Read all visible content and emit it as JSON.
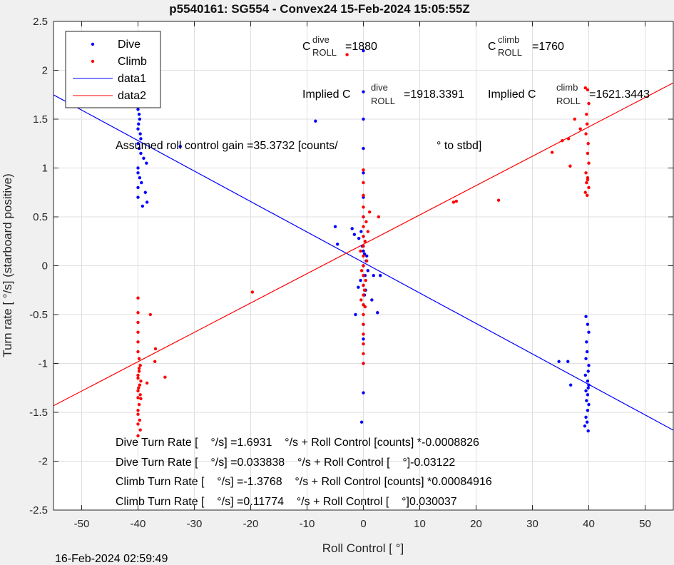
{
  "chart_data": {
    "type": "scatter",
    "title": "p5540161: SG554 - Convex24 15-Feb-2024 15:05:55Z",
    "xlabel": "Roll Control [ °]",
    "ylabel": "Turn rate [ °/s] (starboard positive)",
    "xlim": [
      -55,
      55
    ],
    "ylim": [
      -2.5,
      2.5
    ],
    "xticks": [
      "-50",
      "-40",
      "-30",
      "-20",
      "-10",
      "0",
      "10",
      "20",
      "30",
      "40",
      "50"
    ],
    "yticks": [
      "-2.5",
      "-2",
      "-1.5",
      "-1",
      "-0.5",
      "0",
      "0.5",
      "1",
      "1.5",
      "2",
      "2.5"
    ],
    "grid": true,
    "legend": {
      "location": "top-left",
      "entries": [
        "Dive",
        "Climb",
        "data1",
        "data2"
      ]
    },
    "colors": {
      "dive": "#0000ff",
      "climb": "#ff0000"
    },
    "series": [
      {
        "name": "Dive",
        "marker": "point",
        "color": "#0000ff",
        "x": [
          -40,
          -40,
          -40,
          -40,
          -40,
          -40,
          -39.8,
          -39.7,
          -39.9,
          -40,
          -39.6,
          -39.5,
          -40,
          -39.8,
          -39.5,
          -39,
          -38.5,
          -40,
          -40,
          -39.7,
          -39.4,
          -40,
          -38.7,
          -40,
          -38.4,
          -39.2,
          -32.5,
          -8.5,
          -5,
          -4.6,
          -2,
          -1.6,
          -0.8,
          0,
          0,
          0,
          0,
          0,
          0,
          0,
          0,
          0,
          0,
          0,
          0,
          0,
          0,
          0,
          0,
          -0.3,
          0.5,
          0.8,
          0.3,
          -0.5,
          0.6,
          -0.2,
          0.4,
          0.2,
          -0.4,
          1.5,
          2.5,
          1.8,
          3,
          -1.4,
          -0.9,
          0.2,
          39.5,
          39.8,
          40,
          39.6,
          39.7,
          39.5,
          40,
          39.9,
          39.4,
          39.8,
          40,
          39.5,
          39.8,
          39.6,
          40,
          39.8,
          39.5,
          39.7,
          39.3,
          39.9,
          39.9,
          36.8,
          34.7,
          36.3
        ],
        "y": [
          1.9,
          1.8,
          1.75,
          1.7,
          1.65,
          1.6,
          1.55,
          1.5,
          1.45,
          1.4,
          1.35,
          1.3,
          1.25,
          1.2,
          1.15,
          1.1,
          1.05,
          1,
          0.95,
          0.9,
          0.85,
          0.8,
          0.75,
          0.7,
          0.65,
          0.61,
          1.22,
          1.48,
          0.4,
          0.22,
          0.38,
          0.32,
          0.28,
          2.2,
          1.78,
          1.5,
          1.2,
          0.95,
          0.7,
          0.5,
          0.3,
          0.15,
          0,
          -0.2,
          -0.4,
          -0.6,
          -0.75,
          -1,
          -1.3,
          -1.6,
          0.05,
          -0.05,
          -0.1,
          -0.15,
          0.1,
          0.2,
          -0.25,
          -0.3,
          0.35,
          -0.35,
          -0.48,
          -0.1,
          -0.1,
          -0.5,
          -0.22,
          0.12,
          -0.52,
          -0.6,
          -0.68,
          -0.78,
          -0.88,
          -0.95,
          -1.02,
          -1.08,
          -1.12,
          -1.18,
          -1.22,
          -1.28,
          -1.32,
          -1.38,
          -1.42,
          -1.48,
          -1.55,
          -1.6,
          -1.64,
          -1.69,
          -1.25,
          -1.22,
          -0.98,
          -0.98
        ]
      },
      {
        "name": "Climb",
        "marker": "point",
        "color": "#ff0000",
        "x": [
          -40,
          -40,
          -40,
          -40,
          -40,
          -40,
          -39.8,
          -39.6,
          -39.8,
          -40,
          -39.5,
          -39.7,
          -40,
          -39.6,
          -39.5,
          -39.8,
          -40,
          -40,
          -39.7,
          -40,
          -39.6,
          -40,
          -39.8,
          -40,
          -39.9,
          -40,
          -38.4,
          -37.8,
          -37,
          -36.9,
          -35.2,
          -19.7,
          -2.9,
          0,
          0,
          0,
          0,
          0,
          0,
          0,
          0,
          0,
          0,
          0,
          0,
          0,
          0,
          0,
          0,
          0,
          0,
          0,
          0,
          0.5,
          0.8,
          0.3,
          -0.5,
          0.6,
          -0.3,
          0.4,
          0.2,
          -0.4,
          1.1,
          2.7,
          0.3,
          16,
          16.5,
          24,
          33.5,
          35.3,
          36.4,
          36.7,
          37.5,
          38.5,
          39.4,
          39.8,
          40,
          39.6,
          39.7,
          39.5,
          39.9,
          39.8,
          40,
          39.5,
          39.8,
          39.6,
          40,
          39.4,
          39.7,
          39.8
        ],
        "y": [
          -0.33,
          -0.48,
          -0.58,
          -0.68,
          -0.78,
          -0.88,
          -0.95,
          -1.02,
          -1.08,
          -1.12,
          -1.18,
          -1.22,
          -1.28,
          -1.32,
          -1.36,
          -1.42,
          -1.48,
          -1.52,
          -1.58,
          -1.62,
          -1.68,
          -1.74,
          -1.05,
          -1.15,
          -1.25,
          -1.35,
          -1.2,
          -0.5,
          -0.98,
          -0.85,
          -1.14,
          -0.27,
          2.16,
          0.98,
          0.85,
          0.72,
          0.6,
          0.5,
          0.4,
          0.3,
          0.2,
          0.1,
          0,
          -0.1,
          -0.2,
          -0.3,
          -0.4,
          -0.5,
          -0.6,
          -0.7,
          -0.8,
          -0.9,
          -1.0,
          0.45,
          0.35,
          0.25,
          0.15,
          0.05,
          -0.05,
          -0.15,
          -0.25,
          -0.35,
          0.55,
          0.5,
          -0.42,
          0.65,
          0.66,
          0.67,
          1.16,
          1.28,
          1.3,
          1.02,
          1.5,
          1.4,
          1.82,
          1.8,
          1.66,
          1.55,
          1.45,
          1.35,
          1.25,
          1.15,
          1.05,
          0.95,
          0.9,
          0.85,
          0.8,
          0.75,
          0.72,
          0.88
        ]
      },
      {
        "name": "data1",
        "type": "line",
        "color": "#0000ff",
        "x": [
          -55,
          55
        ],
        "y": [
          1.7485,
          -1.6824
        ]
      },
      {
        "name": "data2",
        "type": "line",
        "color": "#ff0000",
        "x": [
          -55,
          55
        ],
        "y": [
          -1.4323,
          1.8714
        ]
      }
    ],
    "annotations": {
      "c_dive_main": "C",
      "c_dive_sup": "dive",
      "c_dive_sub": "ROLL",
      "c_dive_val": "=1880",
      "c_climb_main": "C",
      "c_climb_sup": "climb",
      "c_climb_sub": "ROLL",
      "c_climb_val": "=1760",
      "implied_dive_main": "Implied C",
      "implied_dive_sup": "dive",
      "implied_dive_sub": "ROLL",
      "implied_dive_val": "=1918.3391",
      "implied_climb_main": "Implied C",
      "implied_climb_sup": "climb",
      "implied_climb_sub": "ROLL",
      "implied_climb_val": "=1621.3443",
      "gain_text": "Assumed roll control gain =35.3732 [counts/",
      "gain_unit": "° to stbd]",
      "fit_lines": [
        "Dive Turn Rate [    °/s] =1.6931    °/s + Roll Control [counts] *-0.0008826",
        "Dive Turn Rate [    °/s] =0.033838    °/s + Roll Control [    °]-0.03122",
        "Climb Turn Rate [    °/s] =-1.3768    °/s + Roll Control [counts] *0.00084916",
        "Climb Turn Rate [    °/s] =0.11774    °/s + Roll Control [    °]0.030037"
      ]
    }
  },
  "footer": {
    "timestamp": "16-Feb-2024 02:59:49"
  }
}
